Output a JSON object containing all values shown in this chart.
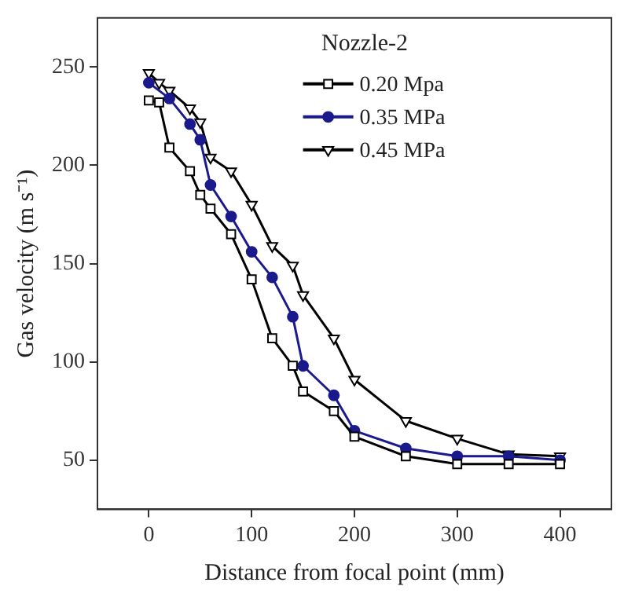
{
  "chart_data": {
    "type": "line",
    "title": "Nozzle-2",
    "xlabel": "Distance from focal point (mm)",
    "ylabel": "Gas velocity (m s⁻¹)",
    "xlim": [
      -50,
      450
    ],
    "xticks": [
      0,
      100,
      200,
      300,
      400
    ],
    "ylim": [
      25,
      275
    ],
    "yticks": [
      50,
      100,
      150,
      200,
      250
    ],
    "grid": false,
    "legend": "top",
    "line_style": "solid",
    "series": [
      {
        "name": "0.20 Mpa",
        "color": "#000000",
        "marker": "square",
        "x": [
          0,
          10,
          20,
          40,
          50,
          60,
          80,
          100,
          120,
          140,
          150,
          180,
          200,
          250,
          300,
          350,
          400
        ],
        "values": [
          233,
          232,
          209,
          197,
          185,
          178,
          165,
          142,
          112,
          98,
          85,
          75,
          62,
          52,
          48,
          48,
          48
        ]
      },
      {
        "name": "0.35 MPa",
        "color": "#1a1a8c",
        "marker": "circle",
        "x": [
          0,
          20,
          40,
          50,
          60,
          80,
          100,
          120,
          140,
          150,
          180,
          200,
          250,
          300,
          350,
          400
        ],
        "values": [
          242,
          234,
          221,
          213,
          190,
          174,
          156,
          143,
          123,
          98,
          83,
          65,
          56,
          52,
          52,
          50
        ]
      },
      {
        "name": "0.45 MPa",
        "color": "#000000",
        "marker": "triangle",
        "x": [
          0,
          10,
          20,
          40,
          50,
          60,
          80,
          100,
          120,
          140,
          150,
          180,
          200,
          250,
          300,
          350,
          400
        ],
        "values": [
          247,
          242,
          238,
          229,
          222,
          204,
          197,
          180,
          159,
          149,
          134,
          112,
          91,
          70,
          61,
          53,
          52
        ]
      }
    ]
  }
}
